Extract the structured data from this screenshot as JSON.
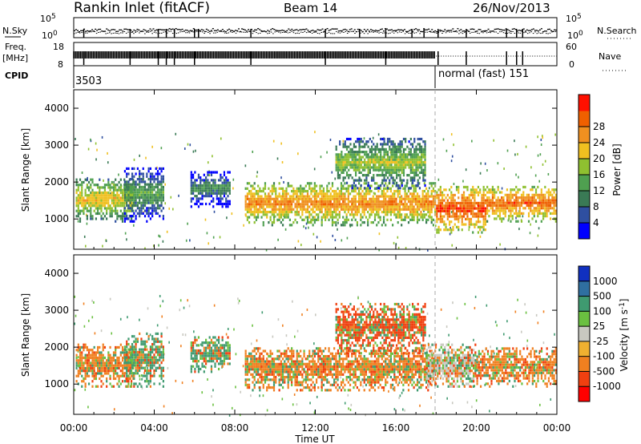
{
  "header": {
    "title": "Rankin Inlet (fitACF)",
    "beam": "Beam 14",
    "date": "26/Nov/2013"
  },
  "top_strips": {
    "nsky_label": "N.Sky",
    "nsearch_label": "N.Search",
    "nsky_ticks": [
      "10^5",
      "10^0"
    ],
    "freq_label": "Freq.",
    "freq_unit": "[MHz]",
    "freq_ticks": [
      "18",
      "8"
    ],
    "nave_label": "Nave",
    "nave_ticks": [
      "60",
      "0"
    ],
    "cpid_label": "CPID",
    "cpid_value": "3503",
    "mode_label": "normal (fast) 151"
  },
  "colors": {
    "power_scale": [
      "#0000ff",
      "#2f4fa0",
      "#3a7a55",
      "#4fa050",
      "#8fc030",
      "#f0c020",
      "#f09020",
      "#f06000",
      "#ff1000"
    ],
    "velocity_scale": [
      "#1030c0",
      "#2f6fa0",
      "#3f9a70",
      "#6ac040",
      "#c8c8c0",
      "#f0b030",
      "#f08020",
      "#f04010",
      "#ff0000"
    ]
  },
  "chart_data": [
    {
      "type": "heatmap",
      "panel": "power",
      "ylabel": "Slant Range [km]",
      "ylim": [
        180,
        4500
      ],
      "yticks": [
        "1000",
        "2000",
        "3000",
        "4000"
      ],
      "xlim_hours": [
        0,
        24
      ],
      "colorbar_label": "Power [dB]",
      "colorbar_ticks": [
        "4",
        "8",
        "12",
        "16",
        "20",
        "24",
        "28"
      ],
      "colorbar_range": [
        0,
        30
      ],
      "features": [
        {
          "t": [
            0.1,
            3.0
          ],
          "r": [
            900,
            2100
          ],
          "level": 20
        },
        {
          "t": [
            2.5,
            4.5
          ],
          "r": [
            900,
            2400
          ],
          "level": 12
        },
        {
          "t": [
            5.8,
            7.8
          ],
          "r": [
            1300,
            2300
          ],
          "level": 10
        },
        {
          "t": [
            8.5,
            18
          ],
          "r": [
            800,
            2000
          ],
          "level": 24
        },
        {
          "t": [
            13,
            17.5
          ],
          "r": [
            1800,
            3200
          ],
          "level": 16
        },
        {
          "t": [
            18,
            20.5
          ],
          "r": [
            600,
            1900
          ],
          "level": 28
        },
        {
          "t": [
            20.5,
            24
          ],
          "r": [
            900,
            1900
          ],
          "level": 26
        }
      ]
    },
    {
      "type": "heatmap",
      "panel": "velocity",
      "ylabel": "Slant Range [km]",
      "ylim": [
        180,
        4500
      ],
      "yticks": [
        "1000",
        "2000",
        "3000",
        "4000"
      ],
      "xlabel": "Time UT",
      "xticks": [
        "00:00",
        "04:00",
        "08:00",
        "12:00",
        "16:00",
        "20:00",
        "00:00"
      ],
      "xlim_hours": [
        0,
        24
      ],
      "colorbar_label": "Velocity [m s^-1]",
      "colorbar_ticks": [
        "1000",
        "500",
        "100",
        "25",
        "-25",
        "-100",
        "-500",
        "-1000"
      ],
      "features": [
        {
          "t": [
            0.1,
            3.0
          ],
          "r": [
            900,
            2100
          ],
          "velocity": -100
        },
        {
          "t": [
            2.5,
            4.5
          ],
          "r": [
            900,
            2400
          ],
          "velocity": 100
        },
        {
          "t": [
            5.8,
            7.8
          ],
          "r": [
            1300,
            2300
          ],
          "velocity": 100
        },
        {
          "t": [
            8.5,
            18
          ],
          "r": [
            800,
            2000
          ],
          "velocity": -100
        },
        {
          "t": [
            13,
            17.5
          ],
          "r": [
            1800,
            3200
          ],
          "velocity": -500
        },
        {
          "t": [
            17.5,
            20
          ],
          "r": [
            900,
            2100
          ],
          "velocity": 0
        },
        {
          "t": [
            20,
            24
          ],
          "r": [
            900,
            2000
          ],
          "velocity": -100
        }
      ]
    }
  ]
}
